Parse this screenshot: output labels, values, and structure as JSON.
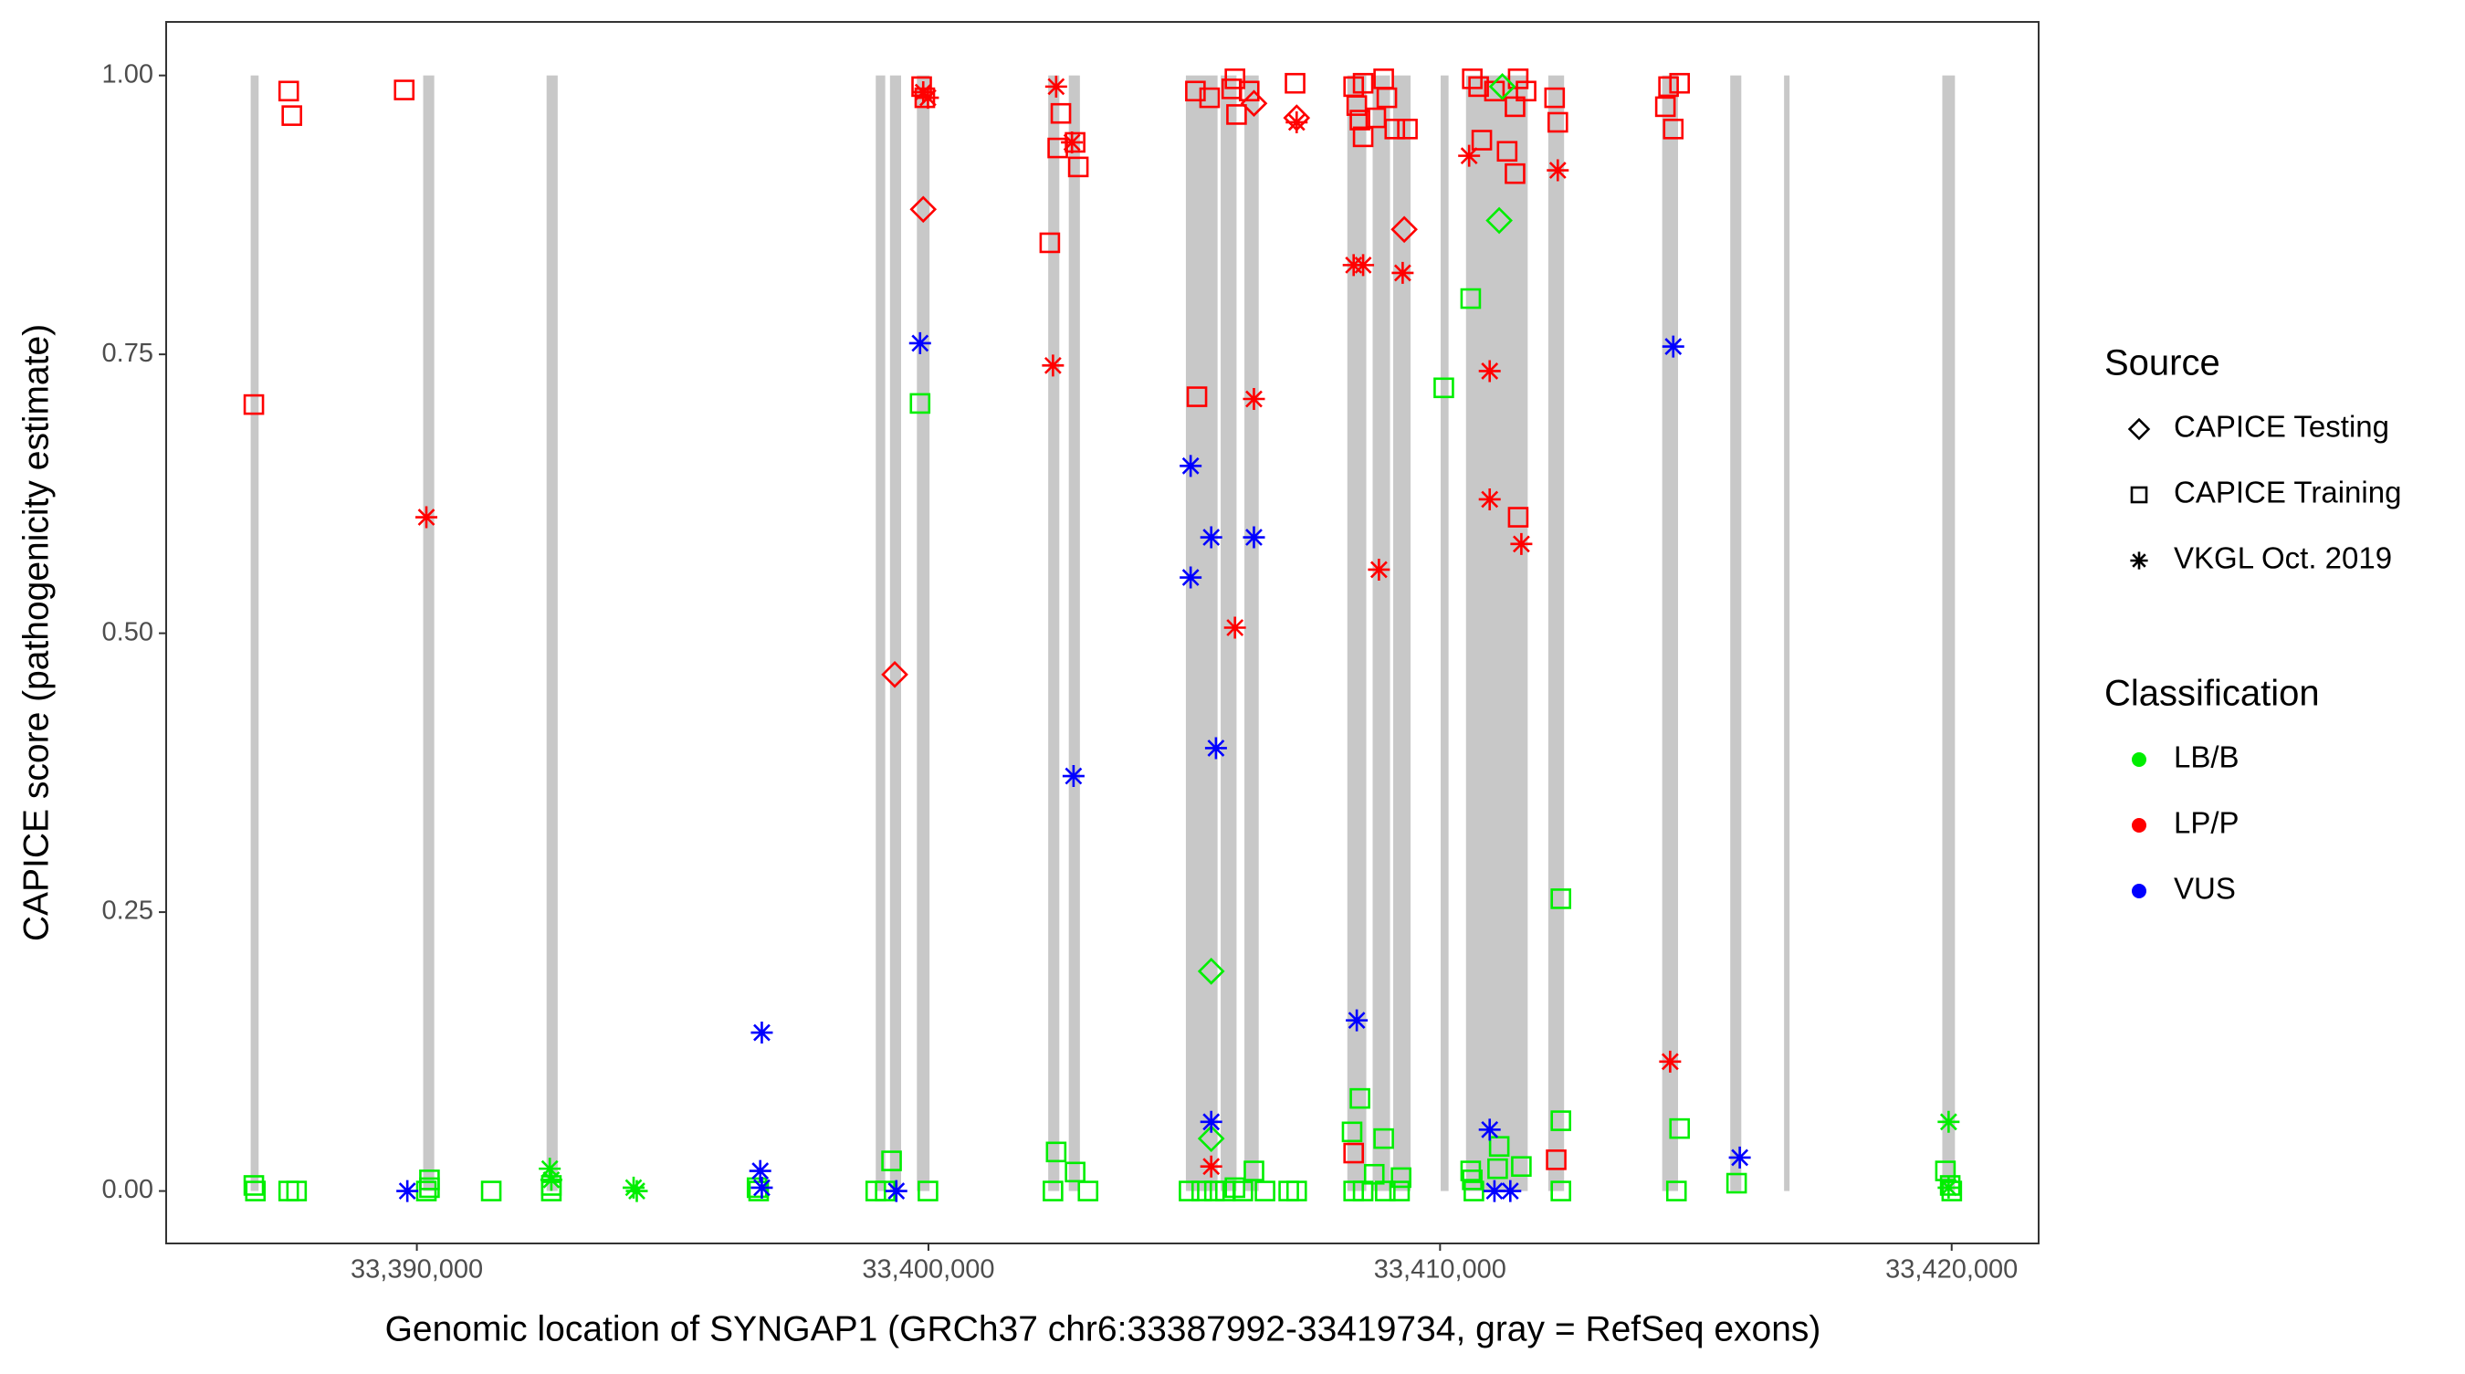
{
  "chart_data": {
    "type": "scatter",
    "x_label": "Genomic location of SYNGAP1 (GRCh37 chr6:33387992-33419734, gray = RefSeq exons)",
    "y_label": "CAPICE score (pathogenicity estimate)",
    "xlim": [
      33385100,
      33421700
    ],
    "ylim": [
      -0.047,
      1.048
    ],
    "xticks": [
      {
        "value": 33390000,
        "label": "33,390,000"
      },
      {
        "value": 33400000,
        "label": "33,400,000"
      },
      {
        "value": 33410000,
        "label": "33,410,000"
      },
      {
        "value": 33420000,
        "label": "33,420,000"
      }
    ],
    "yticks": [
      {
        "value": 0,
        "label": "0.00"
      },
      {
        "value": 0.25,
        "label": "0.25"
      },
      {
        "value": 0.5,
        "label": "0.50"
      },
      {
        "value": 0.75,
        "label": "0.75"
      },
      {
        "value": 1,
        "label": "1.00"
      }
    ],
    "grid": false,
    "exon_color": "#c8c8c8",
    "exons": [
      [
        33386752,
        33386907
      ],
      [
        33390124,
        33390340
      ],
      [
        33392536,
        33392753
      ],
      [
        33398970,
        33399155
      ],
      [
        33399248,
        33399465
      ],
      [
        33399774,
        33400021
      ],
      [
        33402341,
        33402558
      ],
      [
        33402743,
        33402960
      ],
      [
        33405032,
        33405651
      ],
      [
        33405712,
        33406022
      ],
      [
        33406176,
        33406455
      ],
      [
        33408187,
        33408558
      ],
      [
        33408682,
        33409022
      ],
      [
        33409084,
        33409424
      ],
      [
        33410012,
        33410166
      ],
      [
        33410507,
        33411713
      ],
      [
        33412115,
        33412424
      ],
      [
        33414342,
        33414651
      ],
      [
        33415672,
        33415888
      ],
      [
        33416724,
        33416817
      ],
      [
        33419817,
        33420064
      ]
    ],
    "legend": {
      "source": {
        "title": "Source",
        "items": [
          {
            "label": "CAPICE Testing",
            "shape": "diamond"
          },
          {
            "label": "CAPICE Training",
            "shape": "square"
          },
          {
            "label": "VKGL Oct. 2019",
            "shape": "asterisk"
          }
        ]
      },
      "classification": {
        "title": "Classification",
        "items": [
          {
            "label": "LB/B",
            "color": "#00ee00"
          },
          {
            "label": "LP/P",
            "color": "#ff0000"
          },
          {
            "label": "VUS",
            "color": "#0000ff"
          }
        ]
      }
    },
    "series": [
      {
        "source": 1,
        "classification": 0,
        "x": [
          33386814,
          33386845,
          33387495,
          33387649,
          33390247,
          33390247,
          33390186,
          33391454,
          33392629,
          33392629,
          33396650,
          33396681,
          33398970,
          33399155,
          33399279,
          33399836,
          33399990,
          33402496,
          33402434,
          33402867,
          33403119,
          33405094,
          33405341,
          33405589,
          33405805,
          33405991,
          33406145,
          33406362,
          33406578,
          33407042,
          33407197,
          33408280,
          33408311,
          33408434,
          33408496,
          33408713,
          33408898,
          33408929,
          33409208,
          33409238,
          33410073,
          33410599,
          33410599,
          33410630,
          33410661,
          33411125,
          33411156,
          33411589,
          33412362,
          33412362,
          33412362,
          33414620,
          33414682,
          33415796,
          33419878,
          33419971,
          33420002
        ],
        "y": [
          0.005,
          0,
          0,
          0,
          0.01,
          0.003,
          0,
          0,
          0,
          0.005,
          0.003,
          0,
          0,
          0,
          0.027,
          0.706,
          0,
          0.035,
          0,
          0.017,
          0,
          0,
          0,
          0,
          0,
          0.003,
          0,
          0.018,
          0,
          0,
          0,
          0.053,
          0,
          0.083,
          0,
          0.015,
          0.047,
          0,
          0,
          0.012,
          0.72,
          0.8,
          0.018,
          0.01,
          0,
          0.02,
          0.04,
          0.022,
          0.262,
          0.063,
          0,
          0,
          0.056,
          0.007,
          0.018,
          0.005,
          0
        ]
      },
      {
        "source": 1,
        "classification": 1,
        "x": [
          33386814,
          33387495,
          33387557,
          33389753,
          33399867,
          33399929,
          33402372,
          33402527,
          33402589,
          33402867,
          33402929,
          33405218,
          33405248,
          33405496,
          33405929,
          33405991,
          33406022,
          33406269,
          33407166,
          33408311,
          33408372,
          33408434,
          33408496,
          33408496,
          33408744,
          33408898,
          33408960,
          33409115,
          33409362,
          33410630,
          33410754,
          33410816,
          33411063,
          33411311,
          33411465,
          33411465,
          33411527,
          33411527,
          33411681,
          33412239,
          33412301,
          33412270,
          33408311,
          33414404,
          33414558,
          33414682,
          33414466
        ],
        "y": [
          0.705,
          0.986,
          0.964,
          0.987,
          0.99,
          0.98,
          0.85,
          0.935,
          0.966,
          0.94,
          0.918,
          0.986,
          0.712,
          0.98,
          0.988,
          0.997,
          0.965,
          0.986,
          0.993,
          0.99,
          0.973,
          0.96,
          0.945,
          0.993,
          0.962,
          0.997,
          0.98,
          0.952,
          0.952,
          0.997,
          0.99,
          0.942,
          0.986,
          0.932,
          0.912,
          0.972,
          0.997,
          0.604,
          0.986,
          0.98,
          0.958,
          0.028,
          0.034,
          0.972,
          0.952,
          0.993,
          0.99
        ]
      },
      {
        "source": 0,
        "classification": 0,
        "x": [
          33405527,
          33405527,
          33411156,
          33411218
        ],
        "y": [
          0.197,
          0.047,
          0.87,
          0.99
        ]
      },
      {
        "source": 0,
        "classification": 1,
        "x": [
          33399341,
          33399898,
          33406362,
          33407197,
          33409300
        ],
        "y": [
          0.463,
          0.88,
          0.975,
          0.962,
          0.862
        ]
      },
      {
        "source": 2,
        "classification": 0,
        "x": [
          33392598,
          33392629,
          33394237,
          33394299,
          33419940,
          33419940
        ],
        "y": [
          0.02,
          0.01,
          0.003,
          0,
          0.062,
          0.003
        ]
      },
      {
        "source": 2,
        "classification": 1,
        "x": [
          33390186,
          33399898,
          33399990,
          33402434,
          33402496,
          33402805,
          33405527,
          33405991,
          33406362,
          33407197,
          33408311,
          33408496,
          33408805,
          33409269,
          33410568,
          33410970,
          33410970,
          33411589,
          33412301,
          33414497
        ],
        "y": [
          0.604,
          0.985,
          0.98,
          0.74,
          0.99,
          0.94,
          0.022,
          0.505,
          0.71,
          0.958,
          0.83,
          0.83,
          0.557,
          0.823,
          0.928,
          0.735,
          0.62,
          0.58,
          0.915,
          0.116
        ]
      },
      {
        "source": 2,
        "classification": 2,
        "x": [
          33389814,
          33396743,
          33396712,
          33396743,
          33399372,
          33399836,
          33402836,
          33405125,
          33405125,
          33405527,
          33405620,
          33405527,
          33406362,
          33408372,
          33410970,
          33411063,
          33411373,
          33414558,
          33415858
        ],
        "y": [
          0,
          0.142,
          0.018,
          0.003,
          0,
          0.76,
          0.372,
          0.65,
          0.55,
          0.586,
          0.397,
          0.062,
          0.586,
          0.153,
          0.055,
          0,
          0,
          0.757,
          0.03
        ]
      }
    ]
  }
}
